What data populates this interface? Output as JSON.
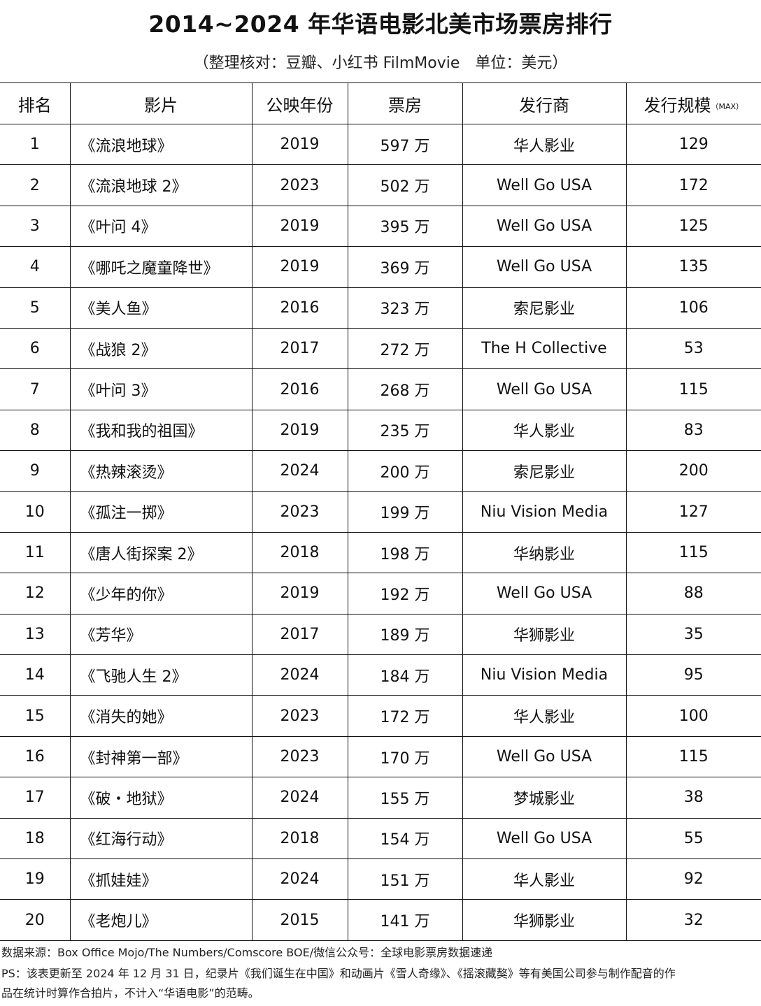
{
  "title": "2014~2024 年华语电影北美市场票房排行",
  "subtitle": "（整理核对：豆瓣、小红书 FilmMovie　单位：美元）",
  "table": {
    "headers": [
      "排名",
      "影片",
      "公映年份",
      "票房",
      "发行商",
      "发行规模"
    ],
    "header_suffix": "（MAX）",
    "rows": [
      [
        "1",
        "《流浪地球》",
        "2019",
        "597 万",
        "华人影业",
        "129"
      ],
      [
        "2",
        "《流浪地球 2》",
        "2023",
        "502 万",
        "Well Go USA",
        "172"
      ],
      [
        "3",
        "《叶问 4》",
        "2019",
        "395 万",
        "Well Go USA",
        "125"
      ],
      [
        "4",
        "《哪吒之魔童降世》",
        "2019",
        "369 万",
        "Well Go USA",
        "135"
      ],
      [
        "5",
        "《美人鱼》",
        "2016",
        "323 万",
        "索尼影业",
        "106"
      ],
      [
        "6",
        "《战狼 2》",
        "2017",
        "272 万",
        "The H Collective",
        "53"
      ],
      [
        "7",
        "《叶问 3》",
        "2016",
        "268 万",
        "Well Go USA",
        "115"
      ],
      [
        "8",
        "《我和我的祖国》",
        "2019",
        "235 万",
        "华人影业",
        "83"
      ],
      [
        "9",
        "《热辣滚烫》",
        "2024",
        "200 万",
        "索尼影业",
        "200"
      ],
      [
        "10",
        "《孤注一掷》",
        "2023",
        "199 万",
        "Niu Vision Media",
        "127"
      ],
      [
        "11",
        "《唐人街探案 2》",
        "2018",
        "198 万",
        "华纳影业",
        "115"
      ],
      [
        "12",
        "《少年的你》",
        "2019",
        "192 万",
        "Well Go USA",
        "88"
      ],
      [
        "13",
        "《芳华》",
        "2017",
        "189 万",
        "华狮影业",
        "35"
      ],
      [
        "14",
        "《飞驰人生 2》",
        "2024",
        "184 万",
        "Niu Vision Media",
        "95"
      ],
      [
        "15",
        "《消失的她》",
        "2023",
        "172 万",
        "华人影业",
        "100"
      ],
      [
        "16",
        "《封神第一部》",
        "2023",
        "170 万",
        "Well Go USA",
        "115"
      ],
      [
        "17",
        "《破・地狱》",
        "2024",
        "155 万",
        "梦城影业",
        "38"
      ],
      [
        "18",
        "《红海行动》",
        "2018",
        "154 万",
        "Well Go USA",
        "55"
      ],
      [
        "19",
        "《抓娃娃》",
        "2024",
        "151 万",
        "华人影业",
        "92"
      ],
      [
        "20",
        "《老炮儿》",
        "2015",
        "141 万",
        "华狮影业",
        "32"
      ]
    ]
  },
  "footer": {
    "source": "数据来源：Box Office Mojo/The Numbers/Comscore BOE/微信公众号：全球电影票房数据速递",
    "ps_line1": "PS：该表更新至 2024 年 12 月 31 日，纪录片《我们诞生在中国》和动画片《雪人奇缘》、《摇滚藏獒》等有美国公司参与制作配音的作",
    "ps_line2": "品在统计时算作合拍片，不计入“华语电影”的范畴。"
  }
}
